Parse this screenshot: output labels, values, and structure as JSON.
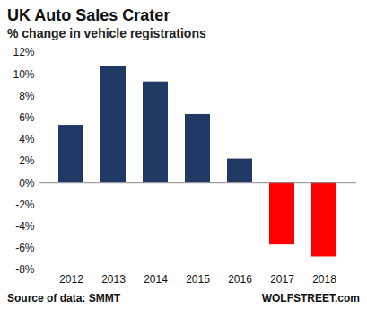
{
  "chart_data": {
    "type": "bar",
    "title": "UK Auto Sales Crater",
    "subtitle": "% change in vehicle registrations",
    "source": "Source of data: SMMT",
    "credit": "WOLFSTREET.com",
    "categories": [
      "2012",
      "2013",
      "2014",
      "2015",
      "2016",
      "2017",
      "2018"
    ],
    "values": [
      5.3,
      10.7,
      9.3,
      6.3,
      2.2,
      -5.7,
      -6.8
    ],
    "colors": [
      "#1f3864",
      "#1f3864",
      "#1f3864",
      "#1f3864",
      "#1f3864",
      "#ff0000",
      "#ff0000"
    ],
    "ylim": [
      -8,
      12
    ],
    "yticks": [
      {
        "value": -8,
        "label": "-8%"
      },
      {
        "value": -6,
        "label": "-6%"
      },
      {
        "value": -4,
        "label": "-4%"
      },
      {
        "value": -2,
        "label": "-2%"
      },
      {
        "value": 0,
        "label": "0%"
      },
      {
        "value": 2,
        "label": "2%"
      },
      {
        "value": 4,
        "label": "4%"
      },
      {
        "value": 6,
        "label": "6%"
      },
      {
        "value": 8,
        "label": "8%"
      },
      {
        "value": 10,
        "label": "10%"
      },
      {
        "value": 12,
        "label": "12%"
      }
    ],
    "grid": false
  }
}
